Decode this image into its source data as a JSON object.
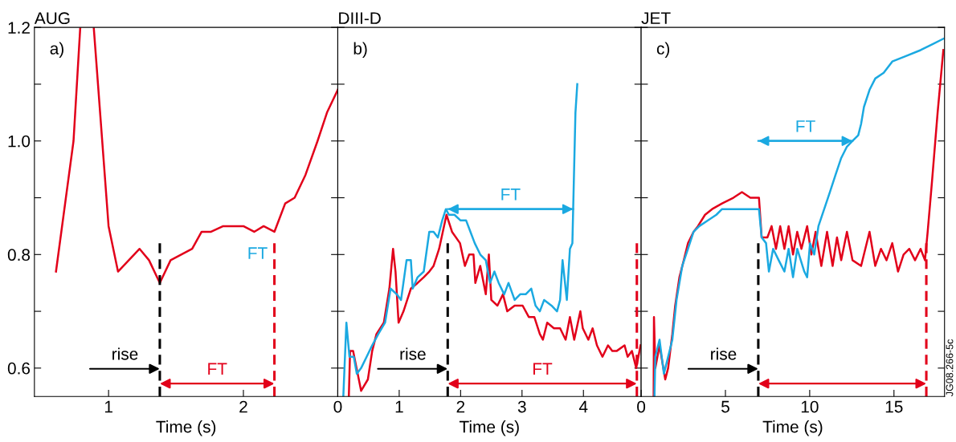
{
  "chart_data": [
    {
      "type": "line",
      "title": "AUG",
      "xlabel": "Time (s)",
      "annotations": [
        "a)",
        {
          "text": "FT",
          "x": 2.23,
          "y": 0.8
        }
      ],
      "series": [
        {
          "color": "#e2001a",
          "x": [
            0.61,
            0.74,
            0.79,
            0.84,
            0.89,
            1.0,
            1.07,
            1.23,
            1.3,
            1.38,
            1.46,
            1.62,
            1.69,
            1.76,
            1.85,
            1.93,
            2.0,
            2.08,
            2.15,
            2.23,
            2.31,
            2.38,
            2.46,
            2.55,
            2.62,
            2.7
          ],
          "values": [
            0.77,
            1.0,
            1.2,
            null,
            1.2,
            0.85,
            0.77,
            0.81,
            0.79,
            0.75,
            0.79,
            0.81,
            0.84,
            0.84,
            0.85,
            0.85,
            0.85,
            0.84,
            0.85,
            0.84,
            0.89,
            0.9,
            0.94,
            1.0,
            1.05,
            1.09
          ]
        }
      ],
      "xlim": [
        0.45,
        2.7
      ],
      "ylim": [
        0.55,
        1.2
      ],
      "xticks": [
        1,
        2
      ],
      "yticks": [
        0.6,
        {
          "value": 0.7,
          "label": null
        },
        0.8,
        {
          "value": 0.9,
          "label": null
        },
        {
          "value": 1,
          "label": "1.0"
        },
        {
          "value": 1.1,
          "label": null
        },
        1.2
      ],
      "ref_lines": [
        {
          "axis": "x",
          "value": 1.38,
          "label": "rise",
          "color": "#000000",
          "line_style": "dashed"
        },
        {
          "axis": "x",
          "value": 2.23,
          "label": "FT",
          "color": "#e2001a",
          "line_style": "dashed"
        }
      ]
    },
    {
      "type": "line",
      "title": "DIII-D",
      "xlabel": "Time (s)",
      "annotations": [
        "b)"
      ],
      "series": [
        {
          "color": "#e2001a",
          "x": [
            0.18,
            0.2,
            0.25,
            0.38,
            0.49,
            0.56,
            0.63,
            0.75,
            0.84,
            0.9,
            0.94,
            0.99,
            1.07,
            1.19,
            1.3,
            1.4,
            1.49,
            1.56,
            1.65,
            1.77,
            1.86,
            1.99,
            2.07,
            2.14,
            2.21,
            2.24,
            2.32,
            2.41,
            2.46,
            2.5,
            2.6,
            2.69,
            2.76,
            2.88,
            3.01,
            3.11,
            3.2,
            3.29,
            3.34,
            3.41,
            3.52,
            3.62,
            3.71,
            3.78,
            3.85,
            3.95,
            3.99,
            4.08,
            4.15,
            4.22,
            4.31,
            4.4,
            4.47,
            4.54,
            4.67,
            4.72,
            4.79,
            4.86,
            4.93
          ],
          "values": [
            0.55,
            0.63,
            0.63,
            0.56,
            0.58,
            0.63,
            0.66,
            0.68,
            0.74,
            0.81,
            0.77,
            0.68,
            0.7,
            0.74,
            0.75,
            0.76,
            0.77,
            0.78,
            0.81,
            0.87,
            0.84,
            0.82,
            0.78,
            0.8,
            0.8,
            0.75,
            0.78,
            0.73,
            0.8,
            0.72,
            0.71,
            0.73,
            0.7,
            0.71,
            0.71,
            0.69,
            0.69,
            0.66,
            0.65,
            0.68,
            0.67,
            0.67,
            0.65,
            0.69,
            0.65,
            0.7,
            0.67,
            0.65,
            0.67,
            0.64,
            0.62,
            0.64,
            0.63,
            0.63,
            0.64,
            0.62,
            0.63,
            0.6,
            0.64
          ]
        },
        {
          "color": "#1ba9e1",
          "x": [
            0.09,
            0.14,
            0.19,
            0.26,
            0.31,
            0.38,
            0.47,
            0.56,
            0.66,
            0.77,
            0.86,
            0.96,
            1.03,
            1.12,
            1.19,
            1.22,
            1.3,
            1.4,
            1.49,
            1.56,
            1.63,
            1.7,
            1.76,
            1.81,
            1.9,
            2.0,
            2.09,
            2.16,
            2.23,
            2.32,
            2.41,
            2.48,
            2.55,
            2.62,
            2.71,
            2.78,
            2.88,
            2.97,
            3.06,
            3.15,
            3.22,
            3.29,
            3.36,
            3.48,
            3.57,
            3.62,
            3.66,
            3.73,
            3.78,
            3.82,
            3.87,
            3.9
          ],
          "values": [
            0.55,
            0.68,
            0.62,
            0.62,
            0.59,
            0.6,
            0.62,
            0.64,
            0.66,
            0.68,
            0.74,
            0.73,
            0.72,
            0.79,
            0.79,
            0.74,
            0.76,
            0.77,
            0.84,
            0.84,
            0.83,
            0.86,
            0.88,
            0.87,
            0.87,
            0.86,
            0.86,
            0.84,
            0.82,
            0.8,
            0.79,
            0.75,
            0.77,
            0.75,
            0.73,
            0.75,
            0.72,
            0.73,
            0.73,
            0.74,
            0.71,
            0.7,
            0.72,
            0.71,
            0.7,
            0.72,
            0.79,
            0.72,
            0.81,
            0.82,
            1.05,
            1.1
          ]
        }
      ],
      "xlim": [
        0,
        4.94
      ],
      "ylim": [
        0.55,
        1.2
      ],
      "xticks": [
        0,
        1,
        2,
        3,
        4
      ],
      "yticks": [
        0.6,
        0.7,
        0.8,
        0.9,
        1.0,
        1.1,
        1.2
      ],
      "tick_labels": "x",
      "ref_lines": [
        {
          "axis": "x",
          "value": 1.79,
          "label": "rise",
          "color": "#000000",
          "line_style": "dashed"
        },
        {
          "axis": "x",
          "value": 4.87,
          "label": "FT",
          "color": "#e2001a",
          "line_style": "dashed"
        },
        {
          "axis": "y",
          "value": 0.88,
          "label": "FT",
          "color": "#1ba9e1"
        }
      ]
    },
    {
      "type": "line",
      "title": "JET",
      "xlabel": "Time (s)",
      "annotations": [
        "c)",
        "JG08.266-5c"
      ],
      "series": [
        {
          "color": "#e2001a",
          "x": [
            0.74,
            0.76,
            0.84,
            1.09,
            1.43,
            1.6,
            1.85,
            2.02,
            2.27,
            2.53,
            2.78,
            3.11,
            3.37,
            3.79,
            4.21,
            4.8,
            5.47,
            5.98,
            6.48,
            6.99,
            7.15,
            7.49,
            7.74,
            8.0,
            8.25,
            8.5,
            8.75,
            9.01,
            9.26,
            9.51,
            9.85,
            10.1,
            10.35,
            10.69,
            11.03,
            11.36,
            11.62,
            11.87,
            12.21,
            12.54,
            13.05,
            13.55,
            13.89,
            14.23,
            14.56,
            14.9,
            15.24,
            15.57,
            15.91,
            16.25,
            16.58,
            16.84,
            17.0,
            17.26,
            17.59,
            17.93
          ],
          "values": [
            0.55,
            0.69,
            0.6,
            0.64,
            0.58,
            0.6,
            0.66,
            0.71,
            0.76,
            0.79,
            0.82,
            0.84,
            0.85,
            0.87,
            0.88,
            0.89,
            0.9,
            0.91,
            0.9,
            0.9,
            0.83,
            0.83,
            0.85,
            0.81,
            0.85,
            0.81,
            0.85,
            0.8,
            0.84,
            0.81,
            0.85,
            0.8,
            0.84,
            0.78,
            0.84,
            0.78,
            0.83,
            0.79,
            0.84,
            0.79,
            0.78,
            0.84,
            0.78,
            0.81,
            0.79,
            0.82,
            0.77,
            0.8,
            0.81,
            0.79,
            0.81,
            0.79,
            0.84,
            0.93,
            1.05,
            1.16
          ]
        },
        {
          "color": "#1ba9e1",
          "x": [
            0.79,
            0.84,
            1.09,
            1.35,
            1.6,
            1.85,
            2.1,
            2.44,
            2.78,
            3.11,
            3.45,
            3.96,
            4.46,
            4.8,
            5.47,
            6.14,
            6.99,
            7.15,
            7.41,
            7.58,
            7.83,
            8.16,
            8.5,
            8.75,
            9.01,
            9.26,
            9.68,
            9.85,
            10.02,
            10.27,
            10.52,
            10.86,
            11.2,
            11.53,
            11.87,
            12.21,
            12.54,
            12.88,
            13.05,
            13.22,
            13.55,
            13.89,
            14.39,
            14.9,
            15.74,
            16.58,
            17.26,
            17.93
          ],
          "values": [
            0.55,
            0.62,
            0.65,
            0.59,
            0.62,
            0.65,
            0.72,
            0.78,
            0.81,
            0.84,
            0.85,
            0.86,
            0.87,
            0.88,
            0.88,
            0.88,
            0.88,
            0.83,
            0.82,
            0.77,
            0.81,
            0.79,
            0.77,
            0.81,
            0.76,
            0.81,
            0.77,
            0.76,
            0.82,
            0.8,
            0.85,
            0.88,
            0.91,
            0.94,
            0.97,
            0.99,
            1.0,
            1.01,
            1.03,
            1.06,
            1.09,
            1.11,
            1.12,
            1.14,
            1.15,
            1.16,
            1.17,
            1.18
          ]
        }
      ],
      "xlim": [
        0,
        18
      ],
      "ylim": [
        0.55,
        1.2
      ],
      "xticks": [
        0,
        5,
        10,
        15
      ],
      "yticks": [
        0.6,
        0.7,
        0.8,
        0.9,
        1.0,
        1.1,
        1.2
      ],
      "tick_labels": "x",
      "ref_lines": [
        {
          "axis": "x",
          "value": 6.95,
          "label": "rise",
          "color": "#000000",
          "line_style": "dashed"
        },
        {
          "axis": "x",
          "value": 16.92,
          "color": "#e2001a",
          "line_style": "dashed"
        },
        {
          "axis": "y",
          "value": 1.0,
          "label": "FT",
          "color": "#1ba9e1"
        }
      ]
    }
  ]
}
